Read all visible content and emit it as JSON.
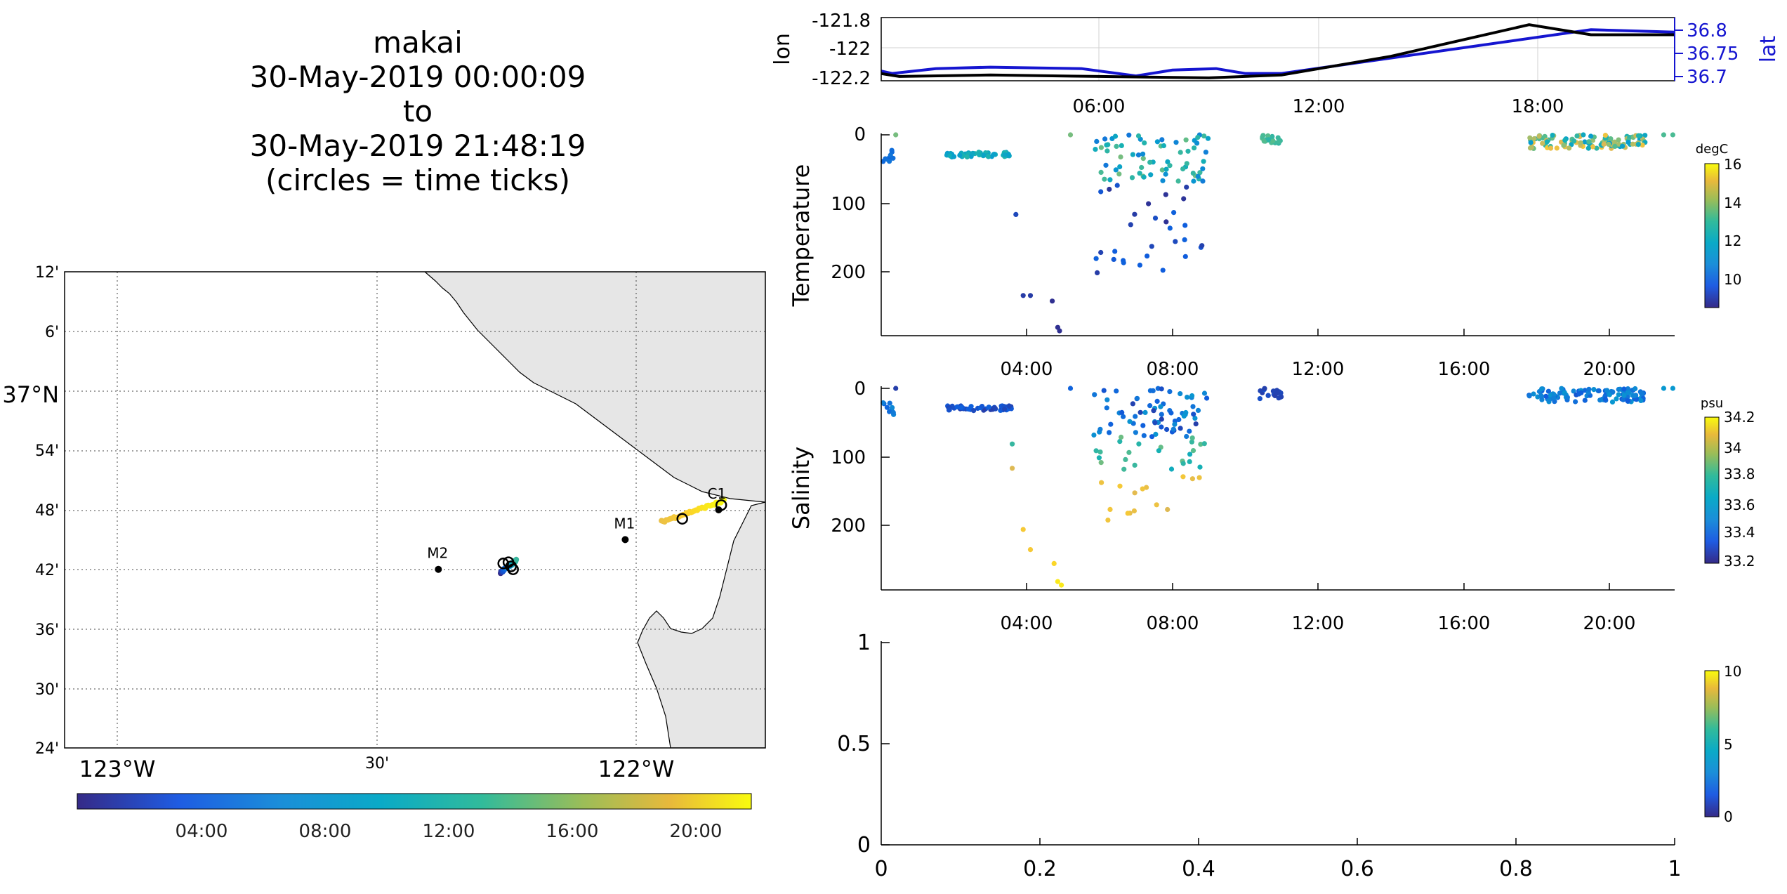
{
  "title": {
    "lines": [
      "makai",
      "30-May-2019 00:00:09",
      "to",
      "30-May-2019 21:48:19",
      "(circles = time ticks)"
    ]
  },
  "map": {
    "lat_ticks": [
      "12'",
      "6'",
      "37°N",
      "54'",
      "48'",
      "42'",
      "36'",
      "30'",
      "24'"
    ],
    "lon_ticks": [
      "123°W",
      "30'",
      "122°W"
    ],
    "lon_range": [
      -123.1,
      -121.75
    ],
    "lat_range": [
      36.4,
      37.2
    ],
    "stations": [
      {
        "name": "M2",
        "lon": -122.38,
        "lat": 36.7
      },
      {
        "name": "M1",
        "lon": -122.02,
        "lat": 36.75
      },
      {
        "name": "C1",
        "lon": -121.84,
        "lat": 36.8
      }
    ],
    "colorbar_ticks": [
      "04:00",
      "08:00",
      "12:00",
      "16:00",
      "20:00"
    ],
    "land_color": "#e6e6e6",
    "track_color": "#f2be32"
  },
  "lonlat": {
    "left_ylabel": "lon",
    "right_ylabel": "lat",
    "left_ticks": [
      "-121.8",
      "-122",
      "-122.2"
    ],
    "right_ticks": [
      "36.8",
      "36.75",
      "36.7"
    ],
    "x_ticks": [
      "06:00",
      "12:00",
      "18:00"
    ],
    "lon_color": "#000000",
    "lat_color": "#1515d0"
  },
  "temperature": {
    "ylabel": "Temperature",
    "y_ticks": [
      "0",
      "100",
      "200"
    ],
    "x_ticks": [
      "04:00",
      "08:00",
      "12:00",
      "16:00",
      "20:00"
    ],
    "cbar_unit": "degC",
    "cbar_ticks": [
      "16",
      "14",
      "12",
      "10"
    ]
  },
  "salinity": {
    "ylabel": "Salinity",
    "y_ticks": [
      "0",
      "100",
      "200"
    ],
    "x_ticks": [
      "04:00",
      "08:00",
      "12:00",
      "16:00",
      "20:00"
    ],
    "cbar_unit": "psu",
    "cbar_ticks": [
      "34.2",
      "34",
      "33.8",
      "33.6",
      "33.4",
      "33.2"
    ]
  },
  "empty": {
    "y_ticks": [
      "1",
      "0.5",
      "0"
    ],
    "x_ticks": [
      "0",
      "0.2",
      "0.4",
      "0.6",
      "0.8",
      "1"
    ],
    "cbar_ticks": [
      "10",
      "5",
      "0"
    ]
  },
  "chart_data": [
    {
      "type": "line",
      "x_unit": "hours since 30-May-2019 00:00",
      "xlim": [
        0,
        21.8
      ],
      "series": [
        {
          "name": "lon",
          "axis": "left",
          "ylim": [
            -122.22,
            -121.78
          ],
          "x": [
            0,
            0.5,
            3,
            6,
            9,
            11,
            14,
            17.8,
            19.5,
            21.8
          ],
          "y": [
            -122.17,
            -122.19,
            -122.18,
            -122.19,
            -122.2,
            -122.18,
            -122.05,
            -121.83,
            -121.9,
            -121.9
          ]
        },
        {
          "name": "lat",
          "axis": "right",
          "ylim": [
            36.69,
            36.82
          ],
          "x": [
            0,
            0.3,
            1.5,
            3,
            5.5,
            6.5,
            7,
            8,
            9.2,
            10,
            11,
            19.5,
            21.8
          ],
          "y": [
            36.71,
            36.705,
            36.715,
            36.718,
            36.715,
            36.705,
            36.7,
            36.712,
            36.715,
            36.705,
            36.705,
            36.795,
            36.79
          ]
        }
      ]
    },
    {
      "type": "scatter",
      "name": "Temperature",
      "x_unit": "hours",
      "xlim": [
        0,
        21.8
      ],
      "ylim": [
        0,
        290
      ],
      "clim": [
        8.5,
        16
      ],
      "clusters": [
        {
          "x": [
            0.05,
            0.35
          ],
          "depth": [
            20,
            40
          ],
          "count": 10,
          "t": [
            9.5,
            10
          ]
        },
        {
          "x": [
            1.8,
            3.6
          ],
          "depth": [
            25,
            32
          ],
          "count": 50,
          "t": [
            11,
            12
          ]
        },
        {
          "x": [
            5.8,
            9.0
          ],
          "depth": [
            0,
            70
          ],
          "count": 70,
          "t": [
            10,
            13
          ]
        },
        {
          "x": [
            5.9,
            8.9
          ],
          "depth": [
            70,
            200
          ],
          "count": 30,
          "t": [
            8.6,
            9.6
          ]
        },
        {
          "x": [
            10.4,
            11.0
          ],
          "depth": [
            0,
            15
          ],
          "count": 18,
          "t": [
            12,
            13
          ]
        },
        {
          "x": [
            17.8,
            21.0
          ],
          "depth": [
            0,
            20
          ],
          "count": 110,
          "t": [
            11,
            15
          ]
        }
      ],
      "points": [
        {
          "x": 0.4,
          "depth": 0,
          "t": 13
        },
        {
          "x": 3.7,
          "depth": 115,
          "t": 9
        },
        {
          "x": 3.9,
          "depth": 232,
          "t": 8.8
        },
        {
          "x": 4.1,
          "depth": 232,
          "t": 8.8
        },
        {
          "x": 4.7,
          "depth": 240,
          "t": 8.6
        },
        {
          "x": 4.85,
          "depth": 278,
          "t": 8.6
        },
        {
          "x": 4.9,
          "depth": 283,
          "t": 8.6
        },
        {
          "x": 5.2,
          "depth": 0,
          "t": 13
        },
        {
          "x": 21.5,
          "depth": 0,
          "t": 12.5
        },
        {
          "x": 21.75,
          "depth": 0,
          "t": 12.5
        }
      ]
    },
    {
      "type": "scatter",
      "name": "Salinity",
      "x_unit": "hours",
      "xlim": [
        0,
        21.8
      ],
      "ylim": [
        0,
        290
      ],
      "clim": [
        33.15,
        34.25
      ],
      "clusters": [
        {
          "x": [
            0.05,
            0.35
          ],
          "depth": [
            20,
            40
          ],
          "count": 10,
          "s": [
            33.3,
            33.45
          ]
        },
        {
          "x": [
            1.8,
            3.6
          ],
          "depth": [
            25,
            32
          ],
          "count": 50,
          "s": [
            33.2,
            33.3
          ]
        },
        {
          "x": [
            5.8,
            9.0
          ],
          "depth": [
            0,
            70
          ],
          "count": 70,
          "s": [
            33.2,
            33.5
          ]
        },
        {
          "x": [
            5.9,
            8.9
          ],
          "depth": [
            70,
            120
          ],
          "count": 25,
          "s": [
            33.6,
            33.8
          ]
        },
        {
          "x": [
            6.0,
            8.8
          ],
          "depth": [
            120,
            195
          ],
          "count": 15,
          "s": [
            34.0,
            34.1
          ]
        },
        {
          "x": [
            10.4,
            11.0
          ],
          "depth": [
            0,
            15
          ],
          "count": 18,
          "s": [
            33.2,
            33.25
          ]
        },
        {
          "x": [
            17.8,
            21.0
          ],
          "depth": [
            0,
            20
          ],
          "count": 110,
          "s": [
            33.25,
            33.5
          ]
        }
      ],
      "points": [
        {
          "x": 0.4,
          "depth": 0,
          "s": 33.2
        },
        {
          "x": 3.6,
          "depth": 80,
          "s": 33.7
        },
        {
          "x": 3.6,
          "depth": 115,
          "s": 34.0
        },
        {
          "x": 3.9,
          "depth": 203,
          "s": 34.1
        },
        {
          "x": 4.1,
          "depth": 232,
          "s": 34.1
        },
        {
          "x": 4.75,
          "depth": 252,
          "s": 34.15
        },
        {
          "x": 4.85,
          "depth": 278,
          "s": 34.2
        },
        {
          "x": 4.95,
          "depth": 283,
          "s": 34.2
        },
        {
          "x": 5.2,
          "depth": 0,
          "s": 33.3
        },
        {
          "x": 21.5,
          "depth": 0,
          "s": 33.5
        },
        {
          "x": 21.75,
          "depth": 0,
          "s": 33.5
        }
      ]
    },
    {
      "type": "scatter",
      "name": "empty",
      "xlim": [
        0,
        1
      ],
      "ylim": [
        0,
        1
      ],
      "clim": [
        0,
        10
      ],
      "values": []
    },
    {
      "type": "scatter",
      "name": "map-track",
      "color_by": "time (hours)",
      "clim": [
        0,
        21.8
      ],
      "segments": [
        {
          "lon_range": [
            -122.26,
            -122.23
          ],
          "lat_range": [
            36.695,
            36.715
          ],
          "time": [
            0,
            11
          ]
        },
        {
          "lon_range": [
            -121.95,
            -121.83
          ],
          "lat_range": [
            36.78,
            36.815
          ],
          "time": [
            17.8,
            21.8
          ]
        }
      ],
      "time_tick_circles": [
        {
          "lon": -122.255,
          "lat": 36.71
        },
        {
          "lon": -122.245,
          "lat": 36.712
        },
        {
          "lon": -122.236,
          "lat": 36.7
        },
        {
          "lon": -122.24,
          "lat": 36.705
        },
        {
          "lon": -121.91,
          "lat": 36.785
        },
        {
          "lon": -121.835,
          "lat": 36.808
        }
      ]
    }
  ]
}
